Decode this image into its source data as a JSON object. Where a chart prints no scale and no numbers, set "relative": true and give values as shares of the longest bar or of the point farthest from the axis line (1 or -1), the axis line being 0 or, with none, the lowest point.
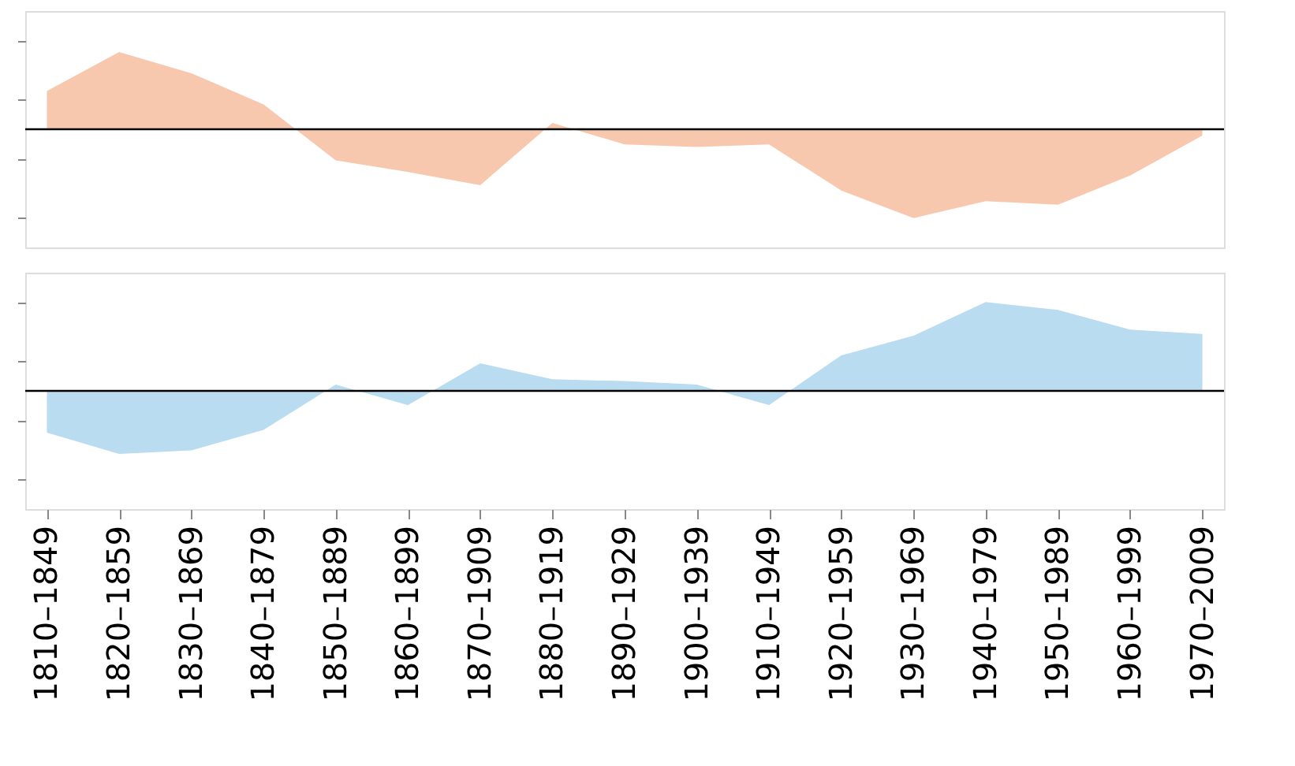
{
  "chart_data": [
    {
      "type": "area",
      "relative": true,
      "tick_labels": false,
      "categories": [
        "1810–1849",
        "1820–1859",
        "1830–1869",
        "1840–1879",
        "1850–1889",
        "1860–1899",
        "1870–1909",
        "1880–1919",
        "1890–1929",
        "1900–1939",
        "1910–1949",
        "1920–1959",
        "1930–1969",
        "1940–1979",
        "1950–1989",
        "1960–1999",
        "1970–2009"
      ],
      "series": [
        {
          "color": "#f7c8ae",
          "values": [
            0.43,
            0.87,
            0.63,
            0.28,
            -0.35,
            -0.48,
            -0.63,
            0.07,
            -0.17,
            -0.2,
            -0.17,
            -0.69,
            -1,
            -0.81,
            -0.85,
            -0.52,
            -0.07
          ]
        }
      ]
    },
    {
      "type": "area",
      "relative": true,
      "tick_labels": "x",
      "categories": [
        "1810–1849",
        "1820–1859",
        "1830–1869",
        "1840–1879",
        "1850–1889",
        "1860–1899",
        "1870–1909",
        "1880–1919",
        "1890–1929",
        "1900–1939",
        "1910–1949",
        "1920–1959",
        "1930–1969",
        "1940–1979",
        "1950–1989",
        "1960–1999",
        "1970–2009"
      ],
      "series": [
        {
          "color": "#b9dcf0",
          "values": [
            -0.47,
            -0.71,
            -0.67,
            -0.44,
            0.07,
            -0.16,
            0.31,
            0.13,
            0.11,
            0.07,
            -0.16,
            0.4,
            0.62,
            1,
            0.91,
            0.69,
            0.64
          ]
        }
      ]
    }
  ]
}
